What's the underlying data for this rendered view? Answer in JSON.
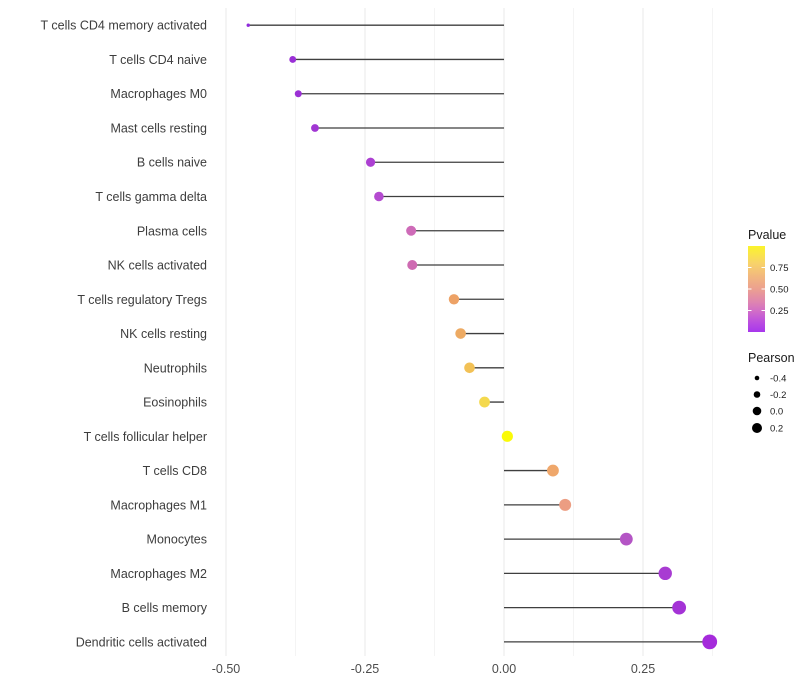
{
  "chart_data": {
    "type": "lollipop",
    "variant": "horizontal segment-and-point plot (correlation lollipop)",
    "title": "",
    "xlabel": "",
    "ylabel": "",
    "xlim": [
      -0.53,
      0.52
    ],
    "grid": true,
    "x_ticks": [
      {
        "value": -0.5,
        "label": "-0.50"
      },
      {
        "value": -0.25,
        "label": "-0.25"
      },
      {
        "value": 0.0,
        "label": "0.00"
      },
      {
        "value": 0.25,
        "label": "0.25"
      }
    ],
    "x_minor_ticks": [
      -0.375,
      -0.125,
      0.125,
      0.375
    ],
    "baseline_value": 0,
    "rows": [
      {
        "label": "T cells CD4 memory activated",
        "pearson": -0.46,
        "dot_color": "#8f2bdb",
        "dot_radius": 1.7
      },
      {
        "label": "T cells CD4 naive",
        "pearson": -0.38,
        "dot_color": "#9a2fd6",
        "dot_radius": 3.4
      },
      {
        "label": "Macrophages M0",
        "pearson": -0.37,
        "dot_color": "#9b30d5",
        "dot_radius": 3.5
      },
      {
        "label": "Mast cells resting",
        "pearson": -0.34,
        "dot_color": "#a136d3",
        "dot_radius": 3.9
      },
      {
        "label": "B cells naive",
        "pearson": -0.24,
        "dot_color": "#ac40d2",
        "dot_radius": 4.6
      },
      {
        "label": "T cells gamma delta",
        "pearson": -0.225,
        "dot_color": "#b44bd0",
        "dot_radius": 4.8
      },
      {
        "label": "Plasma cells",
        "pearson": -0.167,
        "dot_color": "#ce6bb8",
        "dot_radius": 5.0
      },
      {
        "label": "NK cells activated",
        "pearson": -0.165,
        "dot_color": "#ce6bb2",
        "dot_radius": 5.0
      },
      {
        "label": "T cells regulatory  Tregs",
        "pearson": -0.09,
        "dot_color": "#eda266",
        "dot_radius": 5.2
      },
      {
        "label": "NK cells resting",
        "pearson": -0.078,
        "dot_color": "#edaa63",
        "dot_radius": 5.3
      },
      {
        "label": "Neutrophils",
        "pearson": -0.062,
        "dot_color": "#f2c156",
        "dot_radius": 5.3
      },
      {
        "label": "Eosinophils",
        "pearson": -0.035,
        "dot_color": "#f4d94e",
        "dot_radius": 5.4
      },
      {
        "label": "T cells follicular helper",
        "pearson": 0.006,
        "dot_color": "#fafa08",
        "dot_radius": 5.6
      },
      {
        "label": "T cells CD8",
        "pearson": 0.088,
        "dot_color": "#efa76b",
        "dot_radius": 5.9
      },
      {
        "label": "Macrophages M1",
        "pearson": 0.11,
        "dot_color": "#ec9d82",
        "dot_radius": 6.0
      },
      {
        "label": "Monocytes",
        "pearson": 0.22,
        "dot_color": "#b455c5",
        "dot_radius": 6.4
      },
      {
        "label": "Macrophages M2",
        "pearson": 0.29,
        "dot_color": "#a83bd2",
        "dot_radius": 6.7
      },
      {
        "label": "B cells memory",
        "pearson": 0.315,
        "dot_color": "#a433d6",
        "dot_radius": 6.9
      },
      {
        "label": "Dendritic cells activated",
        "pearson": 0.37,
        "dot_color": "#a52bdb",
        "dot_radius": 7.4
      }
    ],
    "legend_position": "right",
    "legends": {
      "pvalue": {
        "title": "Pvalue",
        "ticks": [
          {
            "value": 0.75,
            "label": "0.75"
          },
          {
            "value": 0.5,
            "label": "0.50"
          },
          {
            "value": 0.25,
            "label": "0.25"
          }
        ],
        "bar_range": [
          0,
          1
        ],
        "gradient_top_to_bottom": [
          {
            "offset": 0.0,
            "color": "#fbf42b"
          },
          {
            "offset": 0.2,
            "color": "#f8d36a"
          },
          {
            "offset": 0.35,
            "color": "#f2b87e"
          },
          {
            "offset": 0.5,
            "color": "#eca090"
          },
          {
            "offset": 0.65,
            "color": "#df85b0"
          },
          {
            "offset": 0.75,
            "color": "#d26fc6"
          },
          {
            "offset": 0.88,
            "color": "#bc4fdf"
          },
          {
            "offset": 1.0,
            "color": "#a737ec"
          }
        ]
      },
      "pearson": {
        "title": "Pearson",
        "entries": [
          {
            "label": "-0.4",
            "radius": 2.3
          },
          {
            "label": "-0.2",
            "radius": 3.3
          },
          {
            "label": "0.0",
            "radius": 4.3
          },
          {
            "label": "0.2",
            "radius": 5.0
          }
        ],
        "dot_color": "#000000"
      }
    },
    "style_colors": {
      "stem": "#3f3f3f",
      "grid_major": "#e8e8e8",
      "grid_minor": "#f4f4f4",
      "axis_text": "#4d4d4d",
      "background": "#ffffff"
    }
  }
}
